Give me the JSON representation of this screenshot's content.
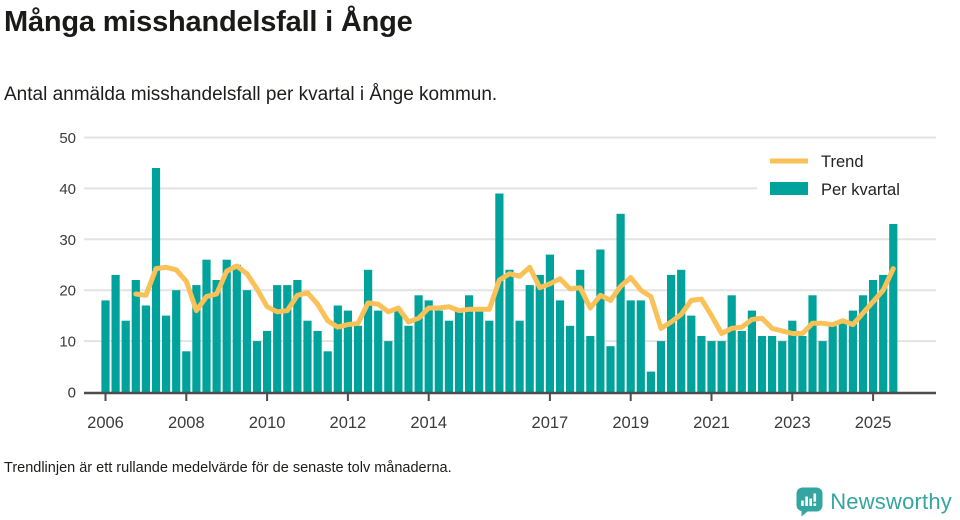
{
  "header": {
    "title": "Många misshandelsfall i Ånge",
    "subtitle": "Antal anmälda misshandelsfall per kvartal i Ånge kommun."
  },
  "legend": {
    "trend_label": "Trend",
    "bars_label": "Per kvartal"
  },
  "footer": {
    "note": "Trendlinjen är ett rullande medelvärde för de senaste tolv månaderna.",
    "brand": "Newsworthy"
  },
  "chart_data": {
    "type": "bar",
    "title": "Många misshandelsfall i Ånge",
    "subtitle": "Antal anmälda misshandelsfall per kvartal i Ånge kommun.",
    "start_year": 2006,
    "start_quarter": 1,
    "x_tick_years": [
      2006,
      2008,
      2010,
      2012,
      2014,
      2017,
      2019,
      2021,
      2023,
      2025
    ],
    "ylim": [
      0,
      50
    ],
    "yticks": [
      0,
      10,
      20,
      30,
      40,
      50
    ],
    "grid": true,
    "legend_position": "top-right",
    "series": [
      {
        "name": "Per kvartal",
        "type": "bar",
        "values": [
          18,
          23,
          14,
          22,
          17,
          44,
          15,
          20,
          8,
          21,
          26,
          22,
          26,
          25,
          20,
          10,
          12,
          21,
          21,
          22,
          14,
          12,
          8,
          17,
          16,
          13,
          24,
          16,
          10,
          16,
          13,
          19,
          18,
          16,
          14,
          16,
          19,
          16,
          14,
          39,
          24,
          14,
          21,
          23,
          27,
          18,
          13,
          24,
          11,
          28,
          9,
          35,
          18,
          18,
          4,
          10,
          23,
          24,
          15,
          11,
          10,
          10,
          19,
          12,
          16,
          11,
          11,
          10,
          14,
          11,
          19,
          10,
          13,
          14,
          16,
          19,
          22,
          23,
          33
        ]
      },
      {
        "name": "Trend",
        "type": "line",
        "derived": "rolling mean of the last 4 quarters (12 months)",
        "window_quarters": 4
      }
    ],
    "colors": {
      "bar": "#00a39b",
      "trend": "#f9c158",
      "grid": "#e3e3e3",
      "axis": "#4d4d4d",
      "tick_label": "#3b3b3b",
      "brand_teal": "#35a5a1"
    }
  }
}
